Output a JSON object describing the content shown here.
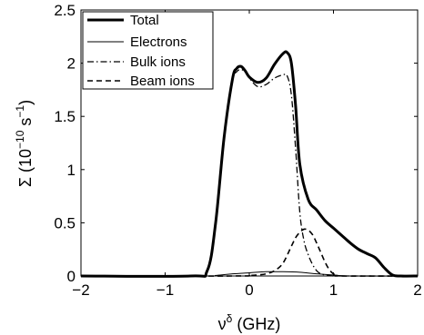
{
  "chart_data": {
    "type": "line",
    "title": "",
    "xlabel": {
      "base": "ν",
      "sup": "δ",
      "rest": " (GHz)"
    },
    "ylabel": {
      "pre": "Σ (10",
      "sup1": "−10",
      "mid": " s",
      "sup2": "−1",
      "post": ")"
    },
    "xlim": [
      -2,
      2
    ],
    "ylim": [
      0,
      2.5
    ],
    "xticks": [
      -2,
      -1,
      0,
      1,
      2
    ],
    "xtick_labels": [
      "−2",
      "−1",
      "0",
      "1",
      "2"
    ],
    "yticks": [
      0,
      0.5,
      1,
      1.5,
      2,
      2.5
    ],
    "ytick_labels": [
      "0",
      "0.5",
      "1",
      "1.5",
      "2",
      "2.5"
    ],
    "grid": false,
    "legend_position": "top-left",
    "series": [
      {
        "name": "Total",
        "style": "solid-thick",
        "x": [
          -2,
          -0.7,
          -0.5,
          -0.4,
          -0.3,
          -0.2,
          -0.15,
          -0.1,
          -0.05,
          0,
          0.1,
          0.2,
          0.3,
          0.4,
          0.45,
          0.5,
          0.55,
          0.6,
          0.7,
          0.8,
          0.9,
          1.0,
          1.1,
          1.2,
          1.3,
          1.4,
          1.5,
          1.6,
          1.7,
          1.8,
          2
        ],
        "y": [
          0,
          0,
          0.05,
          0.5,
          1.3,
          1.85,
          1.95,
          1.97,
          1.93,
          1.87,
          1.82,
          1.86,
          1.99,
          2.09,
          2.1,
          2.0,
          1.6,
          1.05,
          0.72,
          0.62,
          0.52,
          0.45,
          0.38,
          0.31,
          0.25,
          0.21,
          0.17,
          0.08,
          0.01,
          0,
          0
        ]
      },
      {
        "name": "Electrons",
        "style": "solid-thin",
        "x": [
          -2,
          -0.5,
          -0.4,
          -0.2,
          0,
          0.2,
          0.4,
          0.6,
          0.8,
          1.0,
          1.2,
          2
        ],
        "y": [
          0,
          0,
          0.005,
          0.02,
          0.03,
          0.04,
          0.04,
          0.035,
          0.02,
          0.01,
          0,
          0
        ]
      },
      {
        "name": "Bulk ions",
        "style": "dashdot",
        "x": [
          -2,
          -0.7,
          -0.5,
          -0.4,
          -0.3,
          -0.2,
          -0.15,
          -0.1,
          -0.05,
          0,
          0.1,
          0.2,
          0.3,
          0.4,
          0.45,
          0.5,
          0.55,
          0.6,
          0.65,
          0.7,
          0.75,
          0.8,
          0.85,
          0.9,
          1.0,
          1.1,
          2
        ],
        "y": [
          0,
          0,
          0.05,
          0.5,
          1.3,
          1.83,
          1.92,
          1.94,
          1.92,
          1.86,
          1.78,
          1.8,
          1.86,
          1.89,
          1.88,
          1.7,
          1.2,
          0.6,
          0.33,
          0.2,
          0.11,
          0.05,
          0.02,
          0.01,
          0,
          0,
          0
        ]
      },
      {
        "name": "Beam ions",
        "style": "dashed",
        "x": [
          -2,
          -0.2,
          0,
          0.1,
          0.2,
          0.3,
          0.4,
          0.5,
          0.55,
          0.6,
          0.65,
          0.7,
          0.75,
          0.8,
          0.85,
          0.9,
          0.95,
          1.0,
          1.05,
          1.1,
          2
        ],
        "y": [
          0,
          0,
          0.005,
          0.01,
          0.02,
          0.05,
          0.12,
          0.28,
          0.36,
          0.41,
          0.44,
          0.43,
          0.39,
          0.31,
          0.22,
          0.13,
          0.06,
          0.02,
          0.005,
          0,
          0
        ]
      }
    ]
  }
}
